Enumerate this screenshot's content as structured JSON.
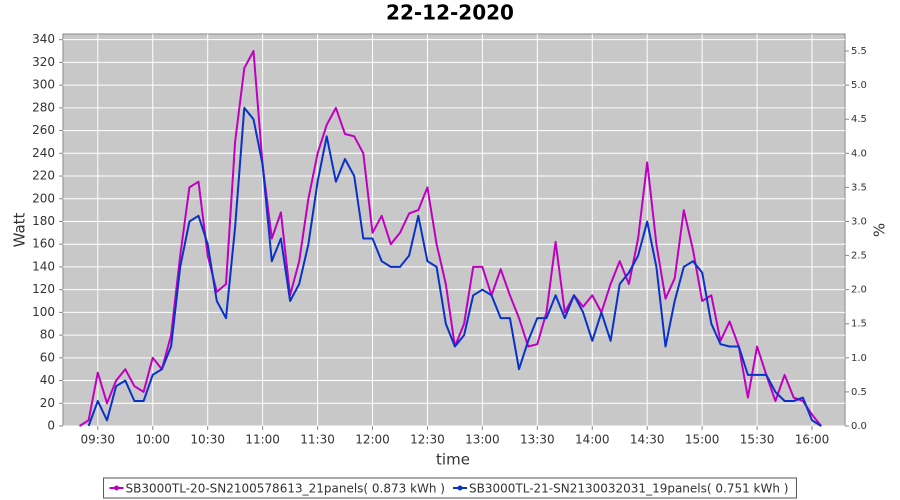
{
  "chart_data": {
    "type": "line",
    "title": "22-12-2020",
    "x_label": "time",
    "y_label": "Watt",
    "y2_label": "%",
    "x": [
      "09:20",
      "09:25",
      "09:30",
      "09:35",
      "09:40",
      "09:45",
      "09:50",
      "09:55",
      "10:00",
      "10:05",
      "10:10",
      "10:15",
      "10:20",
      "10:25",
      "10:30",
      "10:35",
      "10:40",
      "10:45",
      "10:50",
      "10:55",
      "11:00",
      "11:05",
      "11:10",
      "11:15",
      "11:20",
      "11:25",
      "11:30",
      "11:35",
      "11:40",
      "11:45",
      "11:50",
      "11:55",
      "12:00",
      "12:05",
      "12:10",
      "12:15",
      "12:20",
      "12:25",
      "12:30",
      "12:35",
      "12:40",
      "12:45",
      "12:50",
      "12:55",
      "13:00",
      "13:05",
      "13:10",
      "13:15",
      "13:20",
      "13:25",
      "13:30",
      "13:35",
      "13:40",
      "13:45",
      "13:50",
      "13:55",
      "14:00",
      "14:05",
      "14:10",
      "14:15",
      "14:20",
      "14:25",
      "14:30",
      "14:35",
      "14:40",
      "14:45",
      "14:50",
      "14:55",
      "15:00",
      "15:05",
      "15:10",
      "15:15",
      "15:20",
      "15:25",
      "15:30",
      "15:35",
      "15:40",
      "15:45",
      "15:50",
      "15:55",
      "16:00",
      "16:05"
    ],
    "series": [
      {
        "name": "SB3000TL-20-SN2100578613_21panels( 0.873 kWh )",
        "color": "#c000c0",
        "values": [
          0,
          5,
          47,
          20,
          40,
          50,
          35,
          30,
          60,
          50,
          80,
          150,
          210,
          215,
          150,
          118,
          125,
          250,
          315,
          330,
          230,
          165,
          188,
          115,
          145,
          200,
          240,
          265,
          280,
          257,
          255,
          240,
          170,
          185,
          160,
          170,
          187,
          190,
          210,
          160,
          125,
          70,
          90,
          140,
          140,
          115,
          138,
          115,
          95,
          70,
          72,
          100,
          162,
          100,
          115,
          105,
          115,
          100,
          125,
          145,
          125,
          165,
          232,
          160,
          112,
          130,
          190,
          155,
          110,
          115,
          75,
          92,
          70,
          25,
          70,
          45,
          22,
          45,
          25,
          22,
          10,
          0
        ]
      },
      {
        "name": "SB3000TL-21-SN2130032031_19panels( 0.751 kWh )",
        "color": "#0a32c8",
        "values": [
          null,
          0,
          22,
          5,
          35,
          40,
          22,
          22,
          45,
          50,
          70,
          140,
          180,
          185,
          160,
          110,
          95,
          175,
          280,
          270,
          230,
          145,
          165,
          110,
          125,
          160,
          215,
          255,
          215,
          235,
          220,
          165,
          165,
          145,
          140,
          140,
          150,
          185,
          145,
          140,
          90,
          70,
          80,
          115,
          120,
          115,
          95,
          95,
          50,
          75,
          95,
          95,
          115,
          95,
          115,
          100,
          75,
          100,
          75,
          125,
          135,
          150,
          180,
          140,
          70,
          110,
          140,
          145,
          135,
          90,
          72,
          70,
          70,
          45,
          45,
          45,
          30,
          22,
          22,
          25,
          5,
          0
        ]
      }
    ],
    "xlim": [
      "09:11",
      "16:18"
    ],
    "xticks": [
      "09:30",
      "10:00",
      "10:30",
      "11:00",
      "11:30",
      "12:00",
      "12:30",
      "13:00",
      "13:30",
      "14:00",
      "14:30",
      "15:00",
      "15:30",
      "16:00"
    ],
    "ylim": [
      0,
      345
    ],
    "yticks": [
      0,
      20,
      40,
      60,
      80,
      100,
      120,
      140,
      160,
      180,
      200,
      220,
      240,
      260,
      280,
      300,
      320,
      340
    ],
    "y2lim": [
      0,
      5.75
    ],
    "y2ticks": [
      {
        "value": 0,
        "label": "0.0"
      },
      0.5,
      {
        "value": 1,
        "label": "1.0"
      },
      1.5,
      {
        "value": 2,
        "label": "2.0"
      },
      2.5,
      {
        "value": 3,
        "label": "3.0"
      },
      3.5,
      {
        "value": 4,
        "label": "4.0"
      },
      4.5,
      {
        "value": 5,
        "label": "5.0"
      },
      5.5
    ],
    "grid": true,
    "legend": "bottom"
  }
}
